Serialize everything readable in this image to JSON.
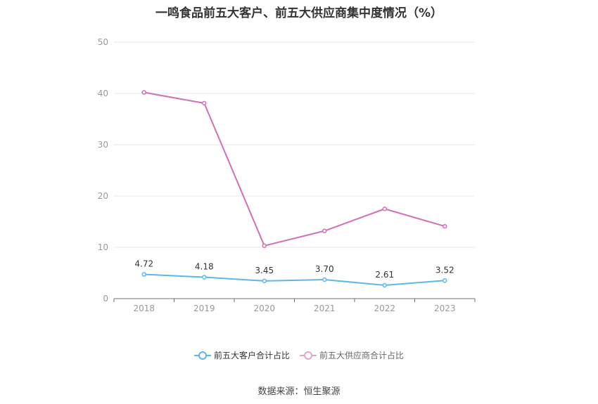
{
  "chart_data": {
    "type": "line",
    "title": "一鸣食品前五大客户、前五大供应商集中度情况（%）",
    "categories": [
      "2018",
      "2019",
      "2020",
      "2021",
      "2022",
      "2023"
    ],
    "ylim": [
      0,
      50
    ],
    "yticks": [
      0,
      10,
      20,
      30,
      40,
      50
    ],
    "grid": true,
    "legend_position": "bottom",
    "series": [
      {
        "name": "前五大客户合计占比",
        "color": "#5bb8e8",
        "values": [
          4.72,
          4.18,
          3.45,
          3.7,
          2.61,
          3.52
        ],
        "data_labels": [
          "4.72",
          "4.18",
          "3.45",
          "3.70",
          "2.61",
          "3.52"
        ]
      },
      {
        "name": "前五大供应商合计占比",
        "color": "#d36fb4",
        "values": [
          40.2,
          38.1,
          10.3,
          13.2,
          17.5,
          14.1
        ]
      }
    ]
  },
  "source": "数据来源：恒生聚源"
}
